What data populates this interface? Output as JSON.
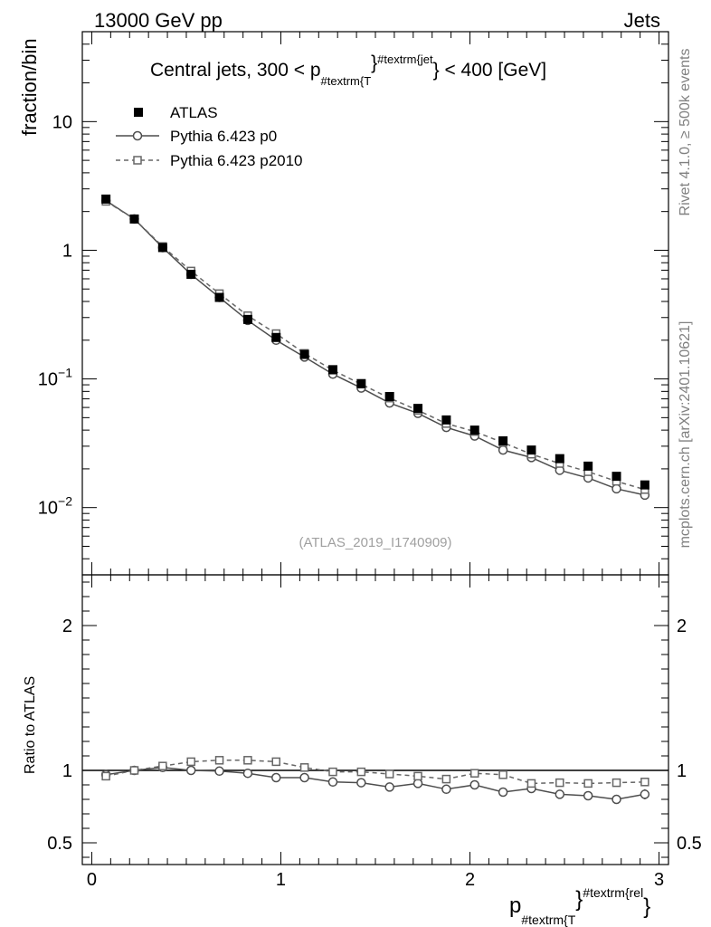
{
  "header": {
    "left": "13000 GeV pp",
    "right": "Jets"
  },
  "side_labels": {
    "rivet": "Rivet 4.1.0, ≥ 500k events",
    "mcplots": "mcplots.cern.ch [arXiv:2401.10621]"
  },
  "chart_data": {
    "type": "line",
    "title_main": "Central jets, 300 < p",
    "title_sub": "#textrm{T",
    "title_brace": "}",
    "title_sup": "#textrm{jet",
    "title_tail": "} < 400 [GeV]",
    "ylabel": "fraction/bin",
    "ratio_ylabel": "Ratio to ATLAS",
    "xlabel_main": "p",
    "xlabel_sub": "#textrm{T",
    "xlabel_brace": "}",
    "xlabel_sup": "#textrm{rel",
    "xlabel_tail": "}",
    "watermark": "(ATLAS_2019_I1740909)",
    "xlim": [
      -0.05,
      3.05
    ],
    "ylim": [
      0.003,
      50
    ],
    "yscale": "log",
    "ratio_ylim": [
      0.35,
      2.35
    ],
    "x_ticks": [
      "0",
      "1",
      "2",
      "3"
    ],
    "y_ticks": [
      {
        "base": "10",
        "exp": "−2"
      },
      {
        "base": "10",
        "exp": "−1"
      },
      {
        "base": "1",
        "exp": ""
      },
      {
        "base": "10",
        "exp": ""
      }
    ],
    "ratio_ticks": [
      "0.5",
      "1",
      "2"
    ],
    "x": [
      0.075,
      0.225,
      0.375,
      0.525,
      0.675,
      0.825,
      0.975,
      1.125,
      1.275,
      1.425,
      1.575,
      1.725,
      1.875,
      2.025,
      2.175,
      2.325,
      2.475,
      2.625,
      2.775,
      2.925
    ],
    "series": [
      {
        "name": "ATLAS",
        "style": "data",
        "color": "#000000",
        "values": [
          2.5,
          1.75,
          1.05,
          0.65,
          0.43,
          0.29,
          0.21,
          0.155,
          0.118,
          0.092,
          0.073,
          0.059,
          0.048,
          0.04,
          0.033,
          0.028,
          0.024,
          0.021,
          0.0175,
          0.015
        ]
      },
      {
        "name": "Pythia 6.423 p0",
        "style": "solid-circle",
        "color": "#4d4d4d",
        "values": [
          2.43,
          1.75,
          1.05,
          0.65,
          0.43,
          0.285,
          0.2,
          0.148,
          0.109,
          0.085,
          0.065,
          0.054,
          0.042,
          0.036,
          0.028,
          0.0245,
          0.0195,
          0.017,
          0.014,
          0.0125
        ],
        "ratio": [
          0.97,
          1.0,
          1.02,
          1.0,
          0.995,
          0.98,
          0.95,
          0.95,
          0.92,
          0.915,
          0.885,
          0.91,
          0.87,
          0.9,
          0.85,
          0.875,
          0.835,
          0.825,
          0.8,
          0.835
        ],
        "ratio_err": [
          0.01,
          0.01,
          0.01,
          0.01,
          0.01,
          0.01,
          0.01,
          0.01,
          0.01,
          0.01,
          0.01,
          0.01,
          0.015,
          0.02,
          0.02,
          0.025,
          0.025,
          0.03,
          0.03,
          0.035
        ]
      },
      {
        "name": "Pythia 6.423 p2010",
        "style": "dashed-square",
        "color": "#666666",
        "values": [
          2.4,
          1.75,
          1.07,
          0.69,
          0.46,
          0.31,
          0.225,
          0.158,
          0.117,
          0.091,
          0.071,
          0.057,
          0.045,
          0.039,
          0.032,
          0.026,
          0.022,
          0.019,
          0.016,
          0.0138
        ],
        "ratio": [
          0.96,
          1.0,
          1.03,
          1.06,
          1.07,
          1.07,
          1.06,
          1.02,
          0.99,
          0.99,
          0.975,
          0.96,
          0.94,
          0.98,
          0.97,
          0.91,
          0.915,
          0.91,
          0.915,
          0.92
        ],
        "ratio_err": [
          0.01,
          0.01,
          0.01,
          0.01,
          0.01,
          0.01,
          0.01,
          0.01,
          0.01,
          0.01,
          0.01,
          0.01,
          0.015,
          0.015,
          0.015,
          0.02,
          0.02,
          0.02,
          0.025,
          0.025
        ]
      }
    ],
    "legend": [
      {
        "label": "ATLAS"
      },
      {
        "label": "Pythia 6.423 p0"
      },
      {
        "label": "Pythia 6.423 p2010"
      }
    ],
    "legend_position": "top-left"
  }
}
